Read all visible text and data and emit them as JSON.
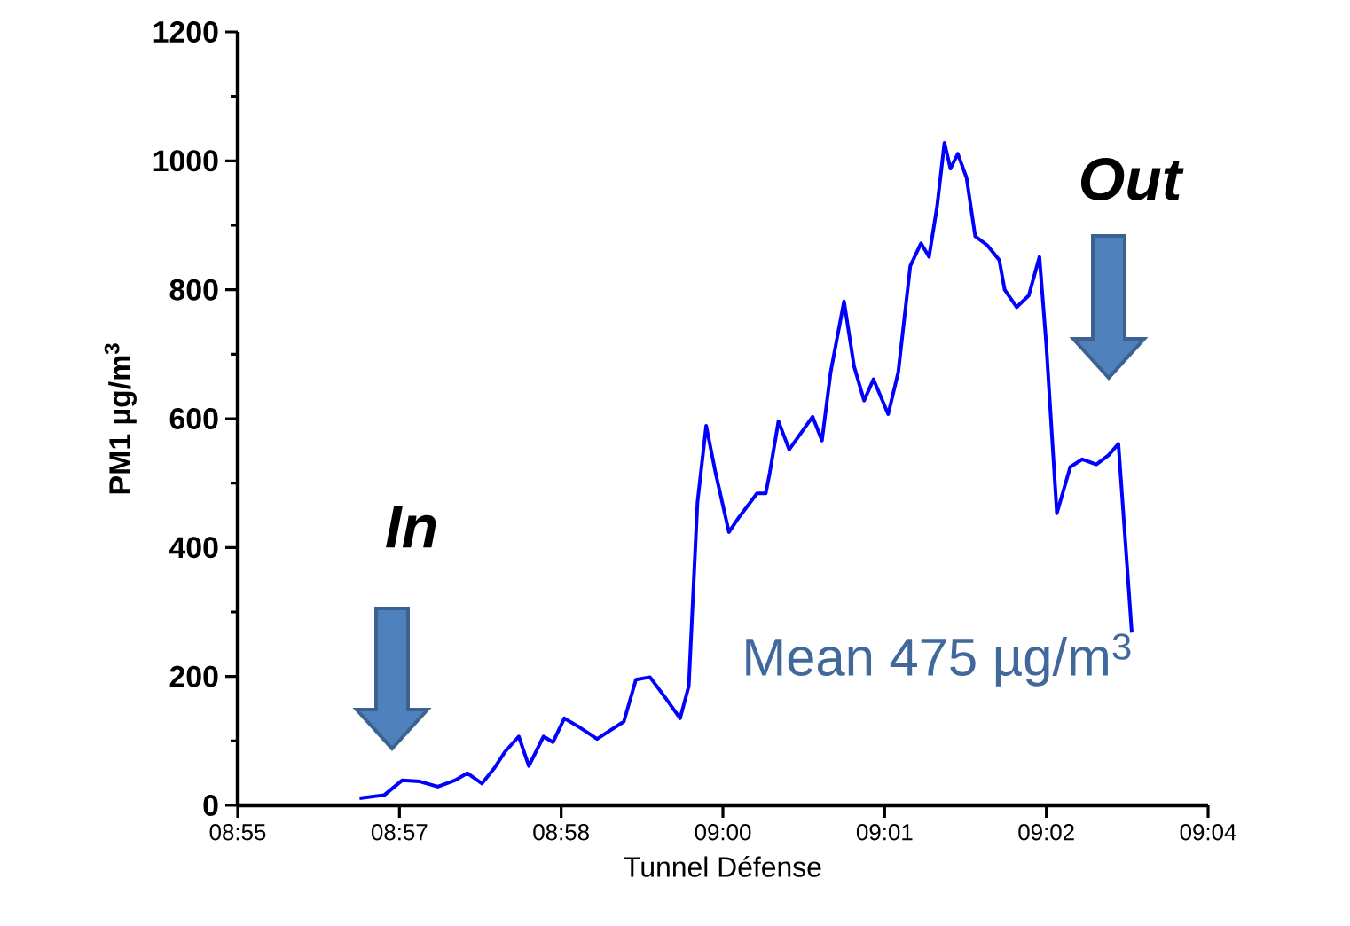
{
  "chart_data": {
    "type": "line",
    "xlabel": "Tunnel Défense",
    "ylabel": "**PM1 µg/m$^{3}$**",
    "color": "#0000ff",
    "x": [
      8.9382,
      8.9419,
      8.9446,
      8.9472,
      8.9499,
      8.9525,
      8.9543,
      8.9565,
      8.9583,
      8.96,
      8.962,
      8.9635,
      8.9657,
      8.9671,
      8.9688,
      8.9711,
      8.9737,
      8.9777,
      8.9795,
      8.9816,
      8.9839,
      8.9861,
      8.9874,
      8.9887,
      8.99,
      8.9914,
      8.9934,
      8.9949,
      8.9976,
      8.9989,
      8.9995,
      9.0008,
      9.0024,
      9.0059,
      9.0073,
      9.0086,
      9.0106,
      9.0121,
      9.0136,
      9.015,
      9.0172,
      9.0187,
      9.0205,
      9.0221,
      9.0233,
      9.0245,
      9.0256,
      9.0265,
      9.0276,
      9.0289,
      9.0302,
      9.032,
      9.0338,
      9.0346,
      9.0364,
      9.0382,
      9.0398,
      9.0408,
      9.0424,
      9.0444,
      9.0462,
      9.0483,
      9.0501,
      9.0516,
      9.0536
    ],
    "values": [
      11,
      16,
      39,
      37,
      29,
      39,
      50,
      34,
      57,
      84,
      107,
      61,
      107,
      98,
      135,
      121,
      103,
      130,
      195,
      199,
      167,
      135,
      185,
      470,
      589,
      516,
      424,
      447,
      484,
      484,
      516,
      596,
      552,
      603,
      566,
      672,
      782,
      681,
      628,
      661,
      607,
      672,
      837,
      872,
      851,
      929,
      1028,
      988,
      1011,
      974,
      883,
      869,
      846,
      800,
      773,
      791,
      851,
      718,
      453,
      525,
      537,
      529,
      543,
      561,
      268
    ],
    "xlim": [
      8.92,
      9.065
    ],
    "ylim": [
      0,
      1200
    ],
    "xticks": [
      {
        "value": 8.92,
        "label": "08:55"
      },
      {
        "value": 8.944167,
        "label": "08:57"
      },
      {
        "value": 8.968333,
        "label": "08:58"
      },
      {
        "value": 8.9925,
        "label": "09:00"
      },
      {
        "value": 9.016667,
        "label": "09:01"
      },
      {
        "value": 9.040833,
        "label": "09:02"
      },
      {
        "value": 9.065,
        "label": "09:04"
      }
    ],
    "yticks": [
      0,
      200,
      400,
      600,
      800,
      1000,
      1200
    ],
    "annotations": [
      "In",
      "Out",
      "Mean 475 µg/m$^{3}$"
    ]
  }
}
